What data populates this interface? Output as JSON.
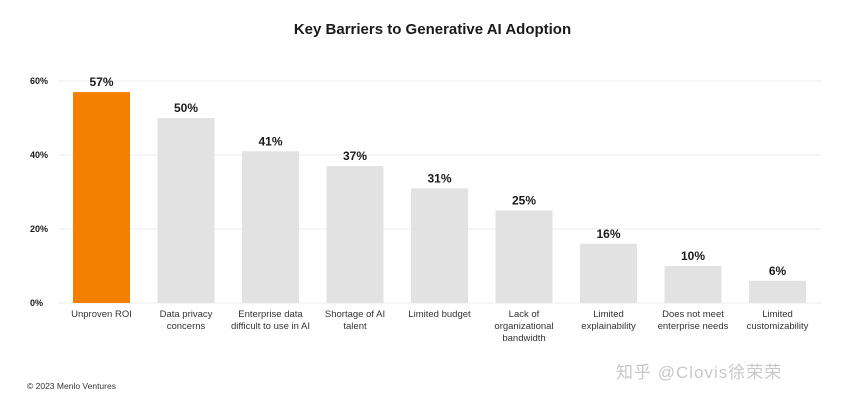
{
  "chart_data": {
    "type": "bar",
    "title": "Key Barriers to Generative AI Adoption",
    "categories": [
      "Unproven ROI",
      "Data privacy\nconcerns",
      "Enterprise data\ndifficult to use in AI",
      "Shortage of AI\ntalent",
      "Limited budget",
      "Lack of\norganizational\nbandwidth",
      "Limited\nexplainability",
      "Does not meet\nenterprise needs",
      "Limited\ncustomizability"
    ],
    "values": [
      57,
      50,
      41,
      37,
      31,
      25,
      16,
      10,
      6
    ],
    "value_labels": [
      "57%",
      "50%",
      "41%",
      "37%",
      "31%",
      "25%",
      "16%",
      "10%",
      "6%"
    ],
    "ylim": [
      0,
      60
    ],
    "yticks": [
      0,
      20,
      40,
      60
    ],
    "ytick_labels": [
      "0%",
      "20%",
      "40%",
      "60%"
    ],
    "grid": true,
    "colors": {
      "highlight": "#f57f00",
      "bar": "#e2e2e2",
      "grid": "#ececec"
    },
    "highlight_index": 0
  },
  "footer": {
    "copyright": "© 2023 Menlo Ventures"
  },
  "watermark": "知乎 @Clovis徐荣荣"
}
